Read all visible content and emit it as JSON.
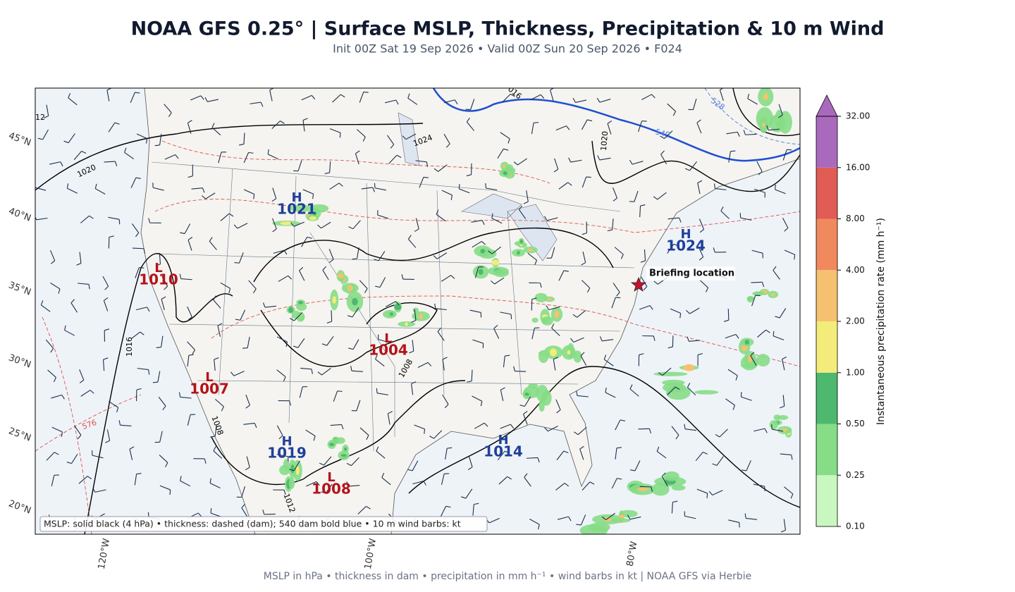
{
  "header": {
    "title": "NOAA GFS 0.25°  |  Surface MSLP, Thickness, Precipitation & 10 m Wind",
    "subtitle": "Init 00Z Sat 19 Sep 2026  •  Valid 00Z Sun 20 Sep 2026  •  F024"
  },
  "map": {
    "lat_labels": [
      "45°N",
      "40°N",
      "35°N",
      "30°N",
      "25°N",
      "20°N"
    ],
    "lon_labels": [
      "120°W",
      "100°W",
      "80°W"
    ],
    "contour_labels": [
      "1020",
      "1024",
      "1020",
      "1016",
      "1008",
      "1008",
      "1012",
      "576",
      "540",
      "528",
      "12",
      "016"
    ],
    "centers": [
      {
        "type": "H",
        "pressure": "1021"
      },
      {
        "type": "L",
        "pressure": "1010"
      },
      {
        "type": "L",
        "pressure": "1004"
      },
      {
        "type": "L",
        "pressure": "1007"
      },
      {
        "type": "H",
        "pressure": "1019"
      },
      {
        "type": "L",
        "pressure": "1008"
      },
      {
        "type": "H",
        "pressure": "1014"
      },
      {
        "type": "H",
        "pressure": "1024"
      }
    ],
    "annotation": "Briefing location",
    "legend": "MSLP: solid black (4 hPa)  •  thickness: dashed (dam); 540 dam bold blue  •  10 m wind barbs: kt"
  },
  "colorbar": {
    "label": "Instantaneous precipitation rate (mm h⁻¹)",
    "ticks": [
      "0.10",
      "0.25",
      "0.50",
      "1.00",
      "2.00",
      "4.00",
      "8.00",
      "16.00",
      "32.00"
    ]
  },
  "footer": "MSLP in hPa • thickness in dam • precipitation in mm h⁻¹ • wind barbs in kt  |  NOAA GFS via Herbie"
}
